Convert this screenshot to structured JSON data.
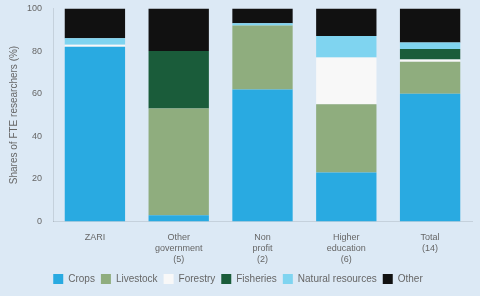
{
  "chart_data": {
    "type": "bar",
    "stacked": true,
    "categories": [
      "ZARI",
      "Other\ngovernment\n(5)",
      "Non\nprofit\n(2)",
      "Higher\neducation\n(6)",
      "Total\n(14)"
    ],
    "series": [
      {
        "name": "Crops",
        "color": "#29aae1",
        "values": [
          82,
          3,
          62,
          23,
          60
        ]
      },
      {
        "name": "Livestock",
        "color": "#8fad7e",
        "values": [
          0,
          50,
          30,
          32,
          15
        ]
      },
      {
        "name": "Forestry",
        "color": "#f8f8f8",
        "values": [
          1,
          0,
          0,
          22,
          1
        ]
      },
      {
        "name": "Fisheries",
        "color": "#1a5c3a",
        "values": [
          0,
          27,
          0,
          0,
          5
        ]
      },
      {
        "name": "Natural resources",
        "color": "#7fd4f0",
        "values": [
          3,
          0,
          1,
          10,
          3
        ]
      },
      {
        "name": "Other",
        "color": "#111111",
        "values": [
          14,
          20,
          7,
          13,
          16
        ]
      }
    ],
    "ylabel": "Shares of FTE researchers (%)",
    "ylim": [
      0,
      100
    ],
    "yticks": [
      0,
      20,
      40,
      60,
      80,
      100
    ],
    "grid": false,
    "legend": "bottom"
  }
}
